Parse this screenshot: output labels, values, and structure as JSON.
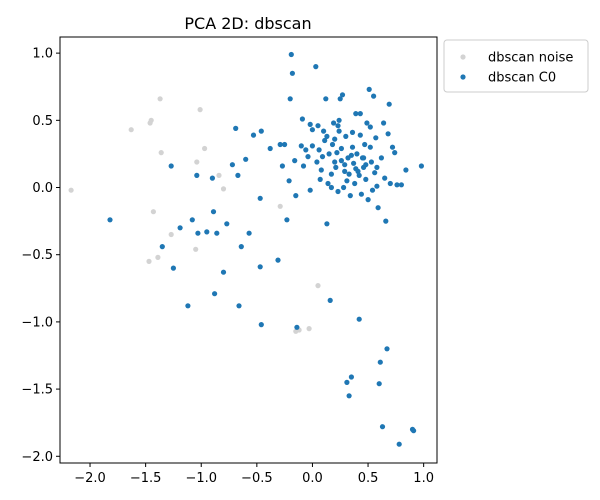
{
  "chart_data": {
    "type": "scatter",
    "title": "PCA 2D: dbscan",
    "xlabel": "",
    "ylabel": "",
    "xlim": [
      -2.27,
      1.12
    ],
    "ylim": [
      -2.05,
      1.12
    ],
    "x_ticks": [
      -2.0,
      -1.5,
      -1.0,
      -0.5,
      0.0,
      0.5,
      1.0
    ],
    "x_tick_labels": [
      "−2.0",
      "−1.5",
      "−1.0",
      "−0.5",
      "0.0",
      "0.5",
      "1.0"
    ],
    "y_ticks": [
      1.0,
      0.5,
      0.0,
      -0.5,
      -1.0,
      -1.5,
      -2.0
    ],
    "y_tick_labels": [
      "1.0",
      "0.5",
      "0.0",
      "−0.5",
      "−1.0",
      "−1.5",
      "−2.0"
    ],
    "grid": false,
    "legend_position": "outside-top-right",
    "series": [
      {
        "name": "dbscan noise",
        "color": "#d3d3d3",
        "points": [
          [
            -2.17,
            -0.02
          ],
          [
            -1.63,
            0.43
          ],
          [
            -1.46,
            0.48
          ],
          [
            -1.45,
            0.5
          ],
          [
            -1.37,
            0.66
          ],
          [
            -1.36,
            0.26
          ],
          [
            -1.43,
            -0.18
          ],
          [
            -1.39,
            -0.52
          ],
          [
            -1.47,
            -0.55
          ],
          [
            -1.27,
            -0.35
          ],
          [
            -1.01,
            0.58
          ],
          [
            -0.97,
            0.29
          ],
          [
            -1.04,
            0.19
          ],
          [
            -1.05,
            -0.46
          ],
          [
            -0.84,
            0.09
          ],
          [
            -0.8,
            -0.01
          ],
          [
            -0.29,
            -0.14
          ],
          [
            0.05,
            -0.73
          ],
          [
            -0.12,
            -1.06
          ],
          [
            -0.15,
            -1.07
          ],
          [
            -0.03,
            -1.05
          ]
        ]
      },
      {
        "name": "dbscan C0",
        "color": "#1f77b4",
        "points": [
          [
            -1.82,
            -0.24
          ],
          [
            -1.35,
            -0.44
          ],
          [
            -1.27,
            0.16
          ],
          [
            -1.25,
            -0.6
          ],
          [
            -1.19,
            -0.3
          ],
          [
            -1.12,
            -0.88
          ],
          [
            -1.08,
            -0.24
          ],
          [
            -1.04,
            0.09
          ],
          [
            -1.03,
            -0.34
          ],
          [
            -0.95,
            -0.33
          ],
          [
            -0.9,
            0.07
          ],
          [
            -0.89,
            -0.18
          ],
          [
            -0.86,
            -0.34
          ],
          [
            -0.88,
            -0.79
          ],
          [
            -0.8,
            -0.63
          ],
          [
            -0.77,
            -0.27
          ],
          [
            -0.72,
            0.17
          ],
          [
            -0.69,
            0.44
          ],
          [
            -0.67,
            0.09
          ],
          [
            -0.66,
            -0.88
          ],
          [
            -0.64,
            -0.44
          ],
          [
            -0.6,
            0.21
          ],
          [
            -0.57,
            -0.34
          ],
          [
            -0.53,
            0.39
          ],
          [
            -0.46,
            0.42
          ],
          [
            -0.47,
            -0.08
          ],
          [
            -0.47,
            -0.59
          ],
          [
            -0.46,
            -1.02
          ],
          [
            -0.38,
            0.29
          ],
          [
            -0.31,
            -0.54
          ],
          [
            -0.29,
            0.32
          ],
          [
            -0.27,
            0.16
          ],
          [
            -0.25,
            0.32
          ],
          [
            -0.23,
            -0.24
          ],
          [
            -0.21,
            0.05
          ],
          [
            -0.2,
            0.66
          ],
          [
            -0.19,
            0.99
          ],
          [
            -0.18,
            0.85
          ],
          [
            -0.16,
            0.2
          ],
          [
            -0.15,
            -0.06
          ],
          [
            -0.14,
            -1.04
          ],
          [
            -0.1,
            0.31
          ],
          [
            -0.09,
            0.51
          ],
          [
            -0.08,
            0.16
          ],
          [
            -0.06,
            0.28
          ],
          [
            -0.04,
            0.23
          ],
          [
            -0.02,
            0.47
          ],
          [
            0.0,
            0.31
          ],
          [
            0.0,
            0.43
          ],
          [
            0.03,
            0.9
          ],
          [
            0.04,
            0.19
          ],
          [
            0.05,
            0.46
          ],
          [
            0.07,
            0.06
          ],
          [
            0.08,
            0.13
          ],
          [
            0.09,
            0.23
          ],
          [
            0.1,
            0.42
          ],
          [
            0.11,
            0.35
          ],
          [
            0.12,
            0.66
          ],
          [
            0.13,
            -0.27
          ],
          [
            0.14,
            0.03
          ],
          [
            0.15,
            0.25
          ],
          [
            0.16,
            -0.84
          ],
          [
            0.17,
            0.1
          ],
          [
            0.18,
            0.32
          ],
          [
            0.19,
            0.48
          ],
          [
            0.2,
            0.36
          ],
          [
            0.21,
            0.15
          ],
          [
            0.22,
            0.26
          ],
          [
            0.23,
            -0.03
          ],
          [
            0.24,
            0.5
          ],
          [
            0.25,
            0.66
          ],
          [
            0.26,
            0.2
          ],
          [
            0.27,
            0.69
          ],
          [
            0.28,
            0.0
          ],
          [
            0.29,
            0.17
          ],
          [
            0.3,
            0.38
          ],
          [
            0.31,
            -1.45
          ],
          [
            0.32,
            0.22
          ],
          [
            0.33,
            0.1
          ],
          [
            0.34,
            -0.06
          ],
          [
            0.35,
            -1.41
          ],
          [
            0.36,
            0.3
          ],
          [
            0.37,
            0.18
          ],
          [
            0.38,
            0.03
          ],
          [
            0.39,
            0.55
          ],
          [
            0.4,
            0.25
          ],
          [
            0.41,
            0.12
          ],
          [
            0.42,
            -0.98
          ],
          [
            0.43,
            0.39
          ],
          [
            0.44,
            -0.05
          ],
          [
            0.45,
            0.22
          ],
          [
            0.46,
            0.15
          ],
          [
            0.47,
            0.32
          ],
          [
            0.48,
            0.06
          ],
          [
            0.49,
            0.48
          ],
          [
            0.5,
            -0.09
          ],
          [
            0.51,
            0.73
          ],
          [
            0.52,
            0.3
          ],
          [
            0.53,
            0.19
          ],
          [
            0.54,
            -0.02
          ],
          [
            0.55,
            0.68
          ],
          [
            0.56,
            0.11
          ],
          [
            0.57,
            0.37
          ],
          [
            0.58,
            0.01
          ],
          [
            0.59,
            -0.15
          ],
          [
            0.6,
            -1.46
          ],
          [
            0.61,
            -1.3
          ],
          [
            0.62,
            0.22
          ],
          [
            0.63,
            -1.78
          ],
          [
            0.64,
            0.48
          ],
          [
            0.65,
            0.07
          ],
          [
            0.66,
            -0.25
          ],
          [
            0.67,
            -1.2
          ],
          [
            0.68,
            0.4
          ],
          [
            0.69,
            0.62
          ],
          [
            0.7,
            0.03
          ],
          [
            0.72,
            0.3
          ],
          [
            0.74,
            0.26
          ],
          [
            0.76,
            0.02
          ],
          [
            0.78,
            -1.91
          ],
          [
            0.8,
            0.02
          ],
          [
            0.84,
            0.13
          ],
          [
            0.9,
            -1.8
          ],
          [
            0.91,
            -1.81
          ],
          [
            0.98,
            0.16
          ],
          [
            -0.02,
            -0.02
          ],
          [
            0.13,
            0.38
          ],
          [
            0.29,
            0.12
          ],
          [
            0.24,
            0.42
          ],
          [
            0.35,
            0.24
          ],
          [
            0.46,
            0.22
          ],
          [
            0.39,
            0.14
          ],
          [
            0.2,
            0.19
          ],
          [
            0.06,
            0.28
          ],
          [
            0.43,
            0.55
          ],
          [
            0.52,
            0.45
          ],
          [
            0.31,
            0.05
          ],
          [
            0.17,
            0.0
          ],
          [
            0.42,
            0.09
          ],
          [
            0.26,
            0.29
          ],
          [
            0.36,
            0.41
          ],
          [
            0.48,
            0.17
          ],
          [
            0.58,
            0.15
          ],
          [
            0.33,
            -1.55
          ],
          [
            0.23,
            0.46
          ]
        ]
      }
    ]
  }
}
